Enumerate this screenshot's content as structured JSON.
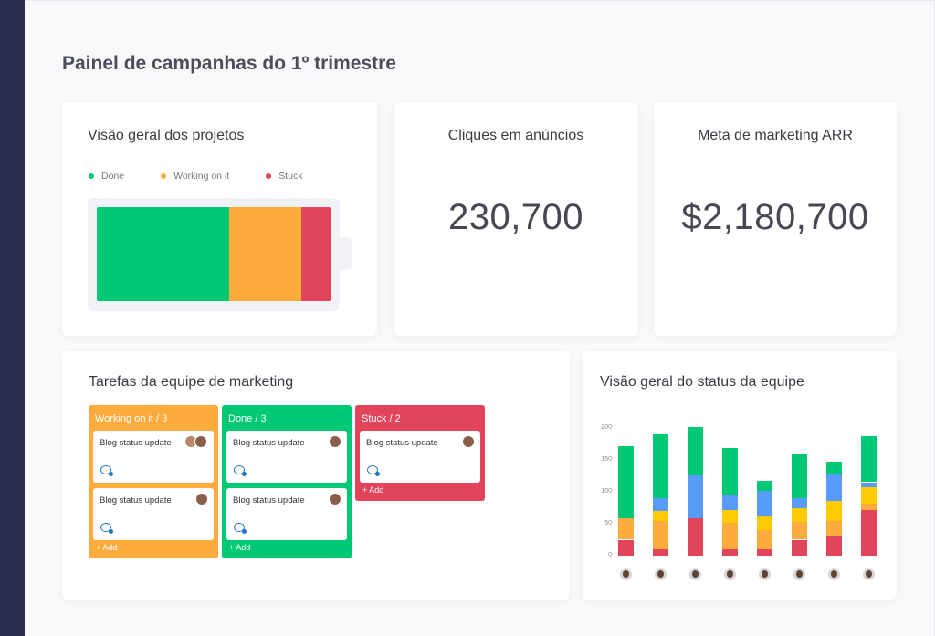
{
  "page": {
    "title": "Painel de campanhas do 1º trimestre"
  },
  "overview": {
    "title": "Visão geral dos projetos",
    "legend": [
      {
        "label": "Done",
        "color": "#00c875"
      },
      {
        "label": "Working on it",
        "color": "#fdab3d"
      },
      {
        "label": "Stuck",
        "color": "#e2445c"
      }
    ],
    "progress": {
      "done": 0.567,
      "working": 0.31,
      "stuck": 0.123
    }
  },
  "ad_clicks": {
    "title": "Cliques em anúncios",
    "value": "230,700"
  },
  "arr_goal": {
    "title": "Meta de marketing ARR",
    "value": "$2,180,700"
  },
  "kanban": {
    "title": "Tarefas da equipe de marketing",
    "columns": [
      {
        "label": "Working on it / 3",
        "color": "#fdab3d",
        "tasks": [
          "Blog status update",
          "Blog status update"
        ],
        "add_label": "+ Add"
      },
      {
        "label": "Done / 3",
        "color": "#00c875",
        "tasks": [
          "Blog status update",
          "Blog status update"
        ],
        "add_label": "+ Add"
      },
      {
        "label": "Stuck / 2",
        "color": "#e2445c",
        "tasks": [
          "Blog status update"
        ],
        "add_label": "+ Add"
      }
    ]
  },
  "team_status": {
    "title": "Visão geral do status da equipe",
    "chart_data": {
      "type": "bar",
      "stacked": true,
      "y_ticks": [
        "200",
        "150",
        "100",
        "50",
        "0"
      ],
      "ylim": [
        0,
        200
      ],
      "series_colors": [
        "#e2445c",
        "#fdab3d",
        "#ffcb00",
        "#579bfc",
        "#00c875"
      ],
      "bars": [
        [
          25,
          33,
          0,
          0,
          113
        ],
        [
          10,
          45,
          15,
          20,
          100
        ],
        [
          58,
          0,
          0,
          68,
          75
        ],
        [
          10,
          42,
          20,
          23,
          73
        ],
        [
          10,
          30,
          22,
          40,
          15
        ],
        [
          25,
          28,
          22,
          15,
          70
        ],
        [
          32,
          22,
          32,
          43,
          18
        ],
        [
          72,
          10,
          25,
          8,
          72
        ]
      ]
    },
    "avatars": [
      "member-1",
      "member-2",
      "member-3",
      "member-4",
      "member-5",
      "member-6",
      "member-7",
      "member-8"
    ]
  }
}
